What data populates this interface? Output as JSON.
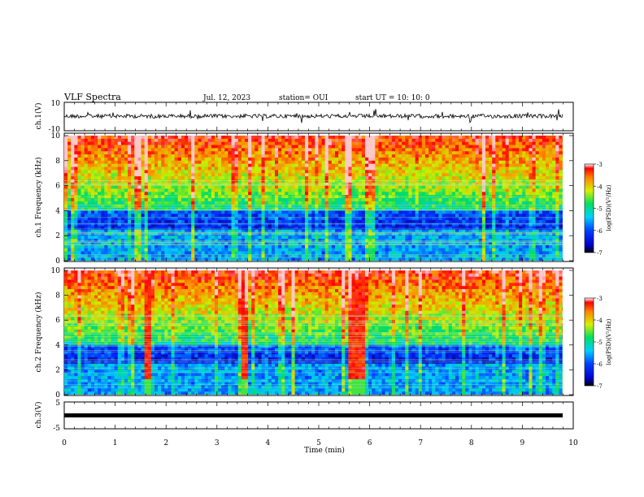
{
  "header": {
    "title": "VLF Spectra",
    "date": "Jul. 12, 2023",
    "station": "station= OUI",
    "start": "start UT =  10: 10: 0"
  },
  "chart_data": [
    {
      "type": "line",
      "panel": "ch1-waveform",
      "ylabel": "ch.1(V)",
      "ylim": [
        -10,
        10
      ],
      "yticks": [
        "10",
        "-10"
      ],
      "xlim": [
        0,
        10
      ],
      "series": [
        {
          "values_description_only": "dense noisy waveform around 0 V with impulsive spikes"
        }
      ],
      "color": "#000000"
    },
    {
      "type": "heatmap",
      "panel": "ch1-spectrogram",
      "ylabel": "ch.1 Frequency (kHz)",
      "ylim": [
        0,
        10
      ],
      "yticks": [
        "0",
        "2",
        "4",
        "6",
        "8",
        "10"
      ],
      "xlim": [
        0,
        9.85
      ],
      "colorbar": {
        "label": "log(PSD)(V²/Hz)",
        "range": [
          -7,
          -3
        ],
        "ticks": [
          "-3",
          "-4",
          "-5",
          "-6",
          "-7"
        ]
      }
    },
    {
      "type": "heatmap",
      "panel": "ch2-spectrogram",
      "ylabel": "ch.2 Frequency (kHz)",
      "ylim": [
        0,
        10
      ],
      "yticks": [
        "0",
        "2",
        "4",
        "6",
        "8",
        "10"
      ],
      "xlim": [
        0,
        9.85
      ],
      "broadband_bursts_min": [
        [
          1.6,
          1.7
        ],
        [
          3.45,
          3.6
        ],
        [
          5.55,
          5.9
        ]
      ],
      "colorbar": {
        "label": "log(PSD)(V²/Hz)",
        "range": [
          -7,
          -3
        ],
        "ticks": [
          "-3",
          "-4",
          "-5",
          "-6",
          "-7"
        ]
      }
    },
    {
      "type": "line",
      "panel": "ch3-waveform",
      "ylabel": "ch.3(V)",
      "ylim": [
        -5,
        5
      ],
      "yticks": [
        "5",
        "-5"
      ],
      "xlim": [
        0,
        10
      ],
      "series": [
        {
          "values": [
            -0.5,
            -0.5
          ]
        }
      ]
    }
  ],
  "xaxis": {
    "label": "Time (min)",
    "ticks": [
      "0",
      "1",
      "2",
      "3",
      "4",
      "5",
      "6",
      "7",
      "8",
      "9",
      "10"
    ],
    "range": [
      0,
      10
    ]
  }
}
